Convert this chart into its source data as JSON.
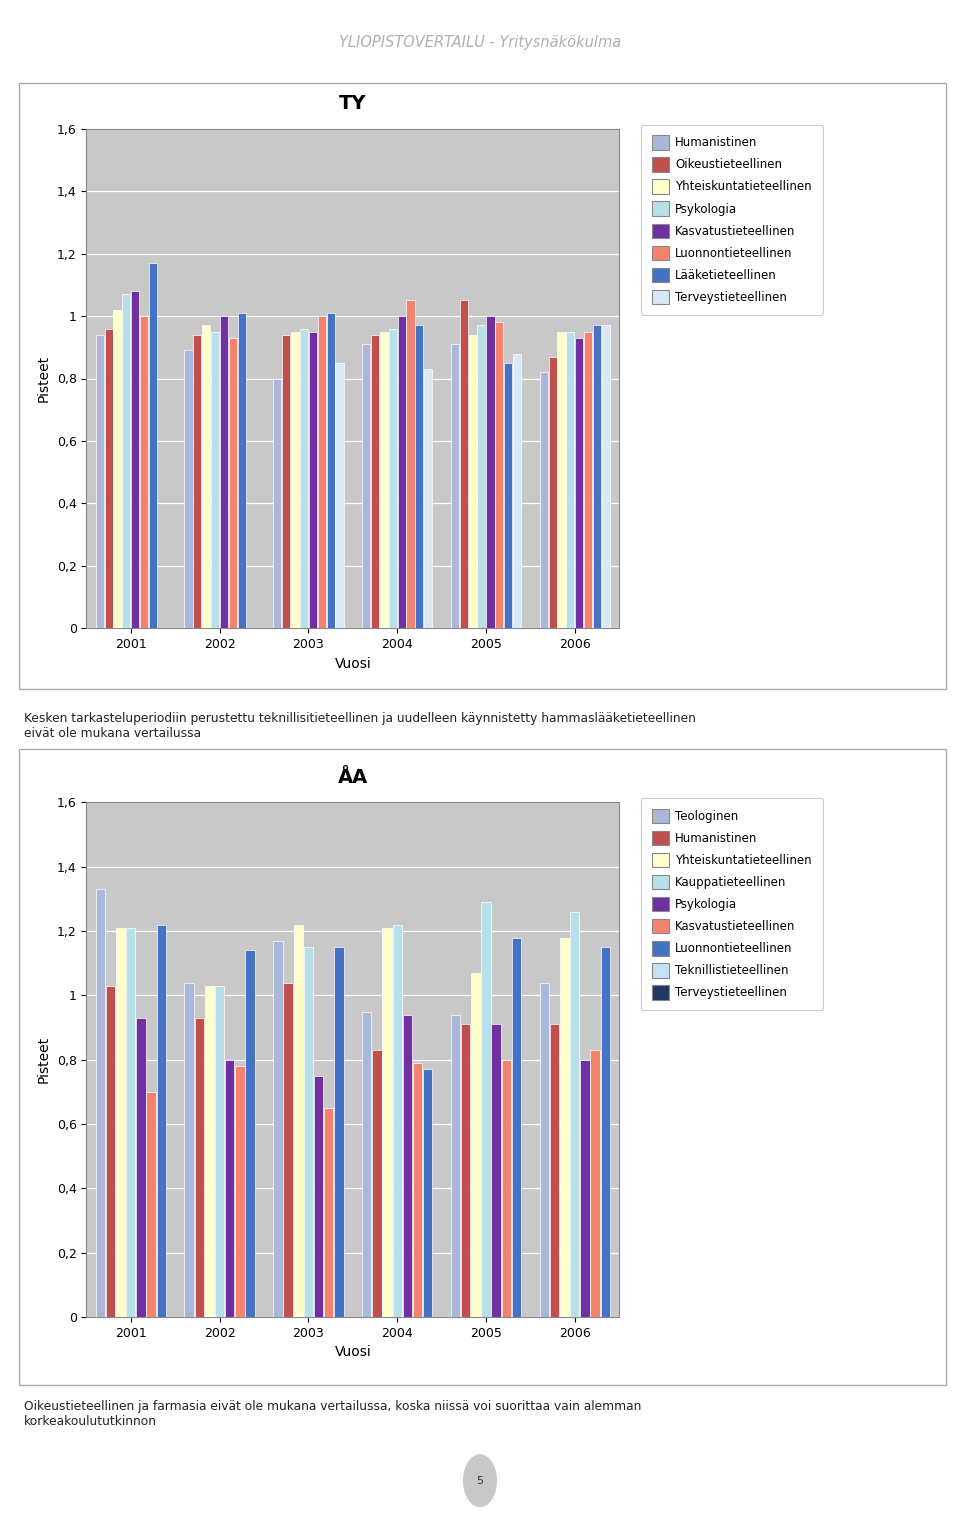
{
  "page_title": "YLIOPISTOVERTAILU - Yritysnäkökulma",
  "chart1": {
    "title": "TY",
    "ylabel": "Pisteet",
    "xlabel": "Vuosi",
    "years": [
      2001,
      2002,
      2003,
      2004,
      2005,
      2006
    ],
    "series": [
      {
        "name": "Humanistinen",
        "color": "#a9b8d8",
        "values": [
          0.94,
          0.89,
          0.8,
          0.91,
          0.91,
          0.82
        ]
      },
      {
        "name": "Oikeustieteellinen",
        "color": "#c0504d",
        "values": [
          0.96,
          0.94,
          0.94,
          0.94,
          1.05,
          0.87
        ]
      },
      {
        "name": "Yhteiskuntatieteellinen",
        "color": "#ffffcc",
        "values": [
          1.02,
          0.97,
          0.95,
          0.95,
          0.94,
          0.95
        ]
      },
      {
        "name": "Psykologia",
        "color": "#b8e0e8",
        "values": [
          1.07,
          0.95,
          0.96,
          0.96,
          0.97,
          0.95
        ]
      },
      {
        "name": "Kasvatustieteellinen",
        "color": "#7030a0",
        "values": [
          1.08,
          1.0,
          0.95,
          1.0,
          1.0,
          0.93
        ]
      },
      {
        "name": "Luonnontieteellinen",
        "color": "#f4836e",
        "values": [
          1.0,
          0.93,
          1.0,
          1.05,
          0.98,
          0.95
        ]
      },
      {
        "name": "Lääketieteellinen",
        "color": "#4472c4",
        "values": [
          1.17,
          1.01,
          1.01,
          0.97,
          0.85,
          0.97
        ]
      },
      {
        "name": "Terveystieteellinen",
        "color": "#d9e8f5",
        "values": [
          null,
          null,
          0.85,
          0.83,
          0.88,
          0.97
        ]
      }
    ],
    "ylim": [
      0,
      1.6
    ],
    "yticks": [
      0,
      0.2,
      0.4,
      0.6,
      0.8,
      1.0,
      1.2,
      1.4,
      1.6
    ]
  },
  "text_between": "Kesken tarkasteluperiodiin perustettu teknillisitieteellinen ja uudelleen käynnistetty hammaslääketieteellinen\neivät ole mukana vertailussa",
  "chart2": {
    "title": "ÅA",
    "ylabel": "Pisteet",
    "xlabel": "Vuosi",
    "years": [
      2001,
      2002,
      2003,
      2004,
      2005,
      2006
    ],
    "series": [
      {
        "name": "Teologinen",
        "color": "#a9b8d8",
        "values": [
          1.33,
          1.04,
          1.17,
          0.95,
          0.94,
          1.04
        ]
      },
      {
        "name": "Humanistinen",
        "color": "#c0504d",
        "values": [
          1.03,
          0.93,
          1.04,
          0.83,
          0.91,
          0.91
        ]
      },
      {
        "name": "Yhteiskuntatieteellinen",
        "color": "#ffffcc",
        "values": [
          1.21,
          1.03,
          1.22,
          1.21,
          1.07,
          1.18
        ]
      },
      {
        "name": "Kauppatieteellinen",
        "color": "#b8e0e8",
        "values": [
          1.21,
          1.03,
          1.15,
          1.22,
          1.29,
          1.26
        ]
      },
      {
        "name": "Psykologia",
        "color": "#7030a0",
        "values": [
          0.93,
          0.8,
          0.75,
          0.94,
          0.91,
          0.8
        ]
      },
      {
        "name": "Kasvatustieteellinen",
        "color": "#f4836e",
        "values": [
          0.7,
          0.78,
          0.65,
          0.79,
          0.8,
          0.83
        ]
      },
      {
        "name": "Luonnontieteellinen",
        "color": "#4472c4",
        "values": [
          1.22,
          1.14,
          1.15,
          0.77,
          1.18,
          1.15
        ]
      },
      {
        "name": "Teknillistieteellinen",
        "color": "#c6e0f5",
        "values": [
          null,
          null,
          null,
          null,
          null,
          null
        ]
      },
      {
        "name": "Terveystieteellinen",
        "color": "#1f3864",
        "values": [
          null,
          null,
          null,
          null,
          null,
          null
        ]
      }
    ],
    "ylim": [
      0,
      1.6
    ],
    "yticks": [
      0,
      0.2,
      0.4,
      0.6,
      0.8,
      1.0,
      1.2,
      1.4,
      1.6
    ]
  },
  "text_bottom": "Oikeustieteellinen ja farmasia eivät ole mukana vertailussa, koska niissä voi suorittaa vain alemman\nkorkeakoulututkinnon",
  "background_color": "#ffffff",
  "plot_bg_color": "#c8c8c8",
  "chart_bg_color": "#ffffff",
  "border_color": "#aaaaaa"
}
